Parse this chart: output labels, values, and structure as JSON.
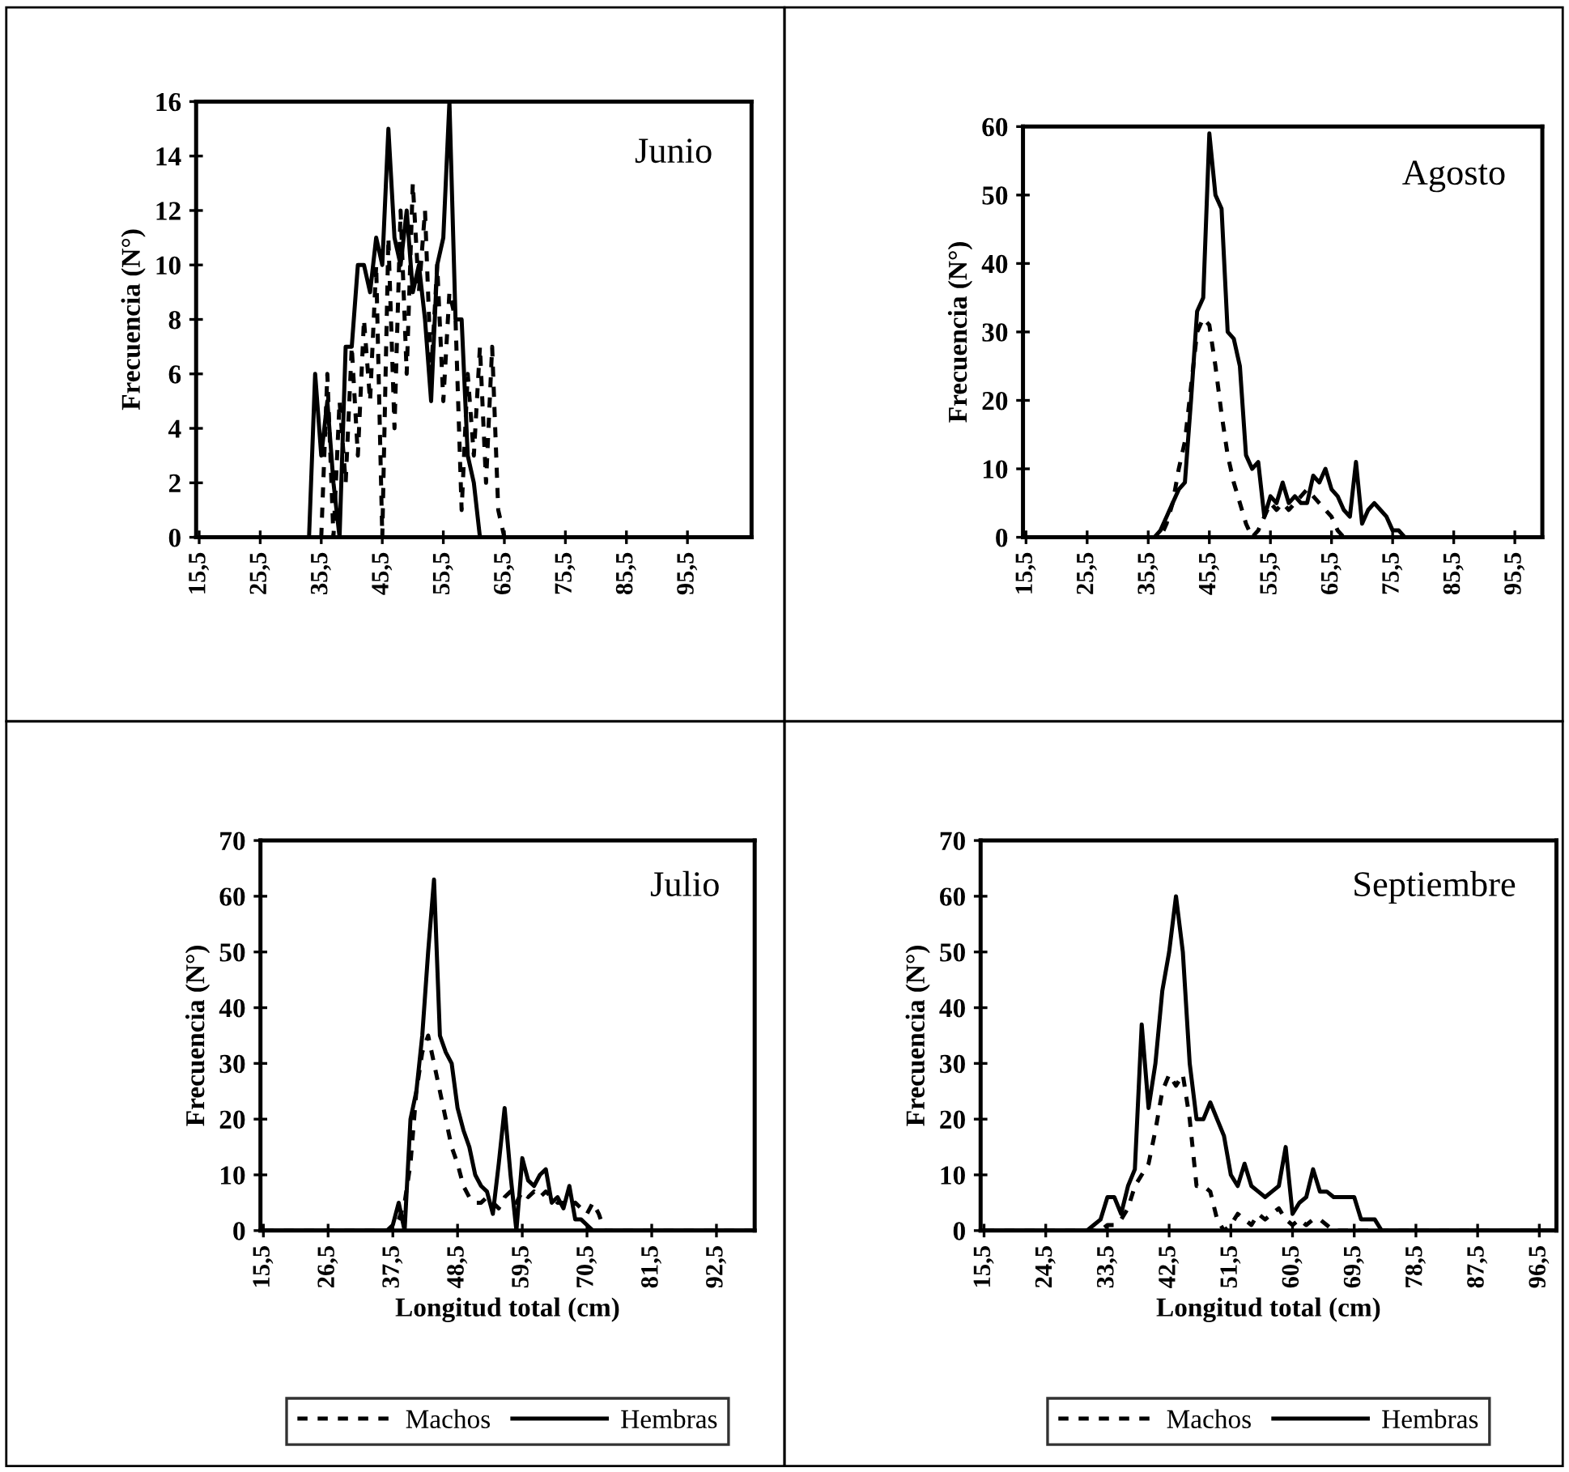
{
  "chart_data": [
    {
      "type": "line",
      "title": "Junio",
      "ylabel": "Frecuencia (N°)",
      "xlim": [
        15,
        106
      ],
      "ylim": [
        0,
        16
      ],
      "xticks": [
        {
          "value": 15.5,
          "label": "15,5"
        },
        {
          "value": 25.5,
          "label": "25,5"
        },
        {
          "value": 35.5,
          "label": "35,5"
        },
        {
          "value": 45.5,
          "label": "45,5"
        },
        {
          "value": 55.5,
          "label": "55,5"
        },
        {
          "value": 65.5,
          "label": "65,5"
        },
        {
          "value": 75.5,
          "label": "75,5"
        },
        {
          "value": 85.5,
          "label": "85,5"
        },
        {
          "value": 95.5,
          "label": "95,5"
        }
      ],
      "yticks": [
        0,
        2,
        4,
        6,
        8,
        10,
        12,
        14,
        16
      ],
      "grid": false,
      "legend": false,
      "series": [
        {
          "color": "#000000",
          "line_style": "dashed",
          "x": [
            15.5,
            35.5,
            36.5,
            37.5,
            38.5,
            39.5,
            40.5,
            41.5,
            42.5,
            43.5,
            44.5,
            45.5,
            46.5,
            47.5,
            48.5,
            49.5,
            50.5,
            51.5,
            52.5,
            53.5,
            54.5,
            55.5,
            56.5,
            57.5,
            58.5,
            59.5,
            60.5,
            61.5,
            62.5,
            63.5,
            64.5,
            65.5,
            105.5
          ],
          "values": [
            0,
            0,
            6,
            0,
            5,
            2,
            7,
            3,
            8,
            5,
            10,
            0,
            11,
            4,
            12,
            6,
            13,
            9,
            12,
            6,
            10,
            5,
            9,
            8,
            1,
            6,
            3,
            7,
            2,
            7,
            1,
            0,
            0
          ]
        },
        {
          "color": "#000000",
          "line_style": "solid",
          "x": [
            15.5,
            33.5,
            34.5,
            35.5,
            36.5,
            37.5,
            38.5,
            39.5,
            40.5,
            41.5,
            42.5,
            43.5,
            44.5,
            45.5,
            46.5,
            47.5,
            48.5,
            49.5,
            50.5,
            51.5,
            52.5,
            53.5,
            54.5,
            55.5,
            56.5,
            57.5,
            58.5,
            59.5,
            60.5,
            61.5,
            105.5
          ],
          "values": [
            0,
            0,
            6,
            3,
            5,
            2,
            0,
            7,
            7,
            10,
            10,
            9,
            11,
            10,
            15,
            11,
            10,
            12,
            9,
            10,
            8,
            5,
            10,
            11,
            16,
            8,
            8,
            3,
            2,
            0,
            0
          ]
        }
      ]
    },
    {
      "type": "line",
      "title": "Agosto",
      "ylabel": "Frecuencia (N°)",
      "xlim": [
        15,
        100
      ],
      "ylim": [
        0,
        60
      ],
      "xticks": [
        {
          "value": 15.5,
          "label": "15,5"
        },
        {
          "value": 25.5,
          "label": "25,5"
        },
        {
          "value": 35.5,
          "label": "35,5"
        },
        {
          "value": 45.5,
          "label": "45,5"
        },
        {
          "value": 55.5,
          "label": "55,5"
        },
        {
          "value": 65.5,
          "label": "65,5"
        },
        {
          "value": 75.5,
          "label": "75,5"
        },
        {
          "value": 85.5,
          "label": "85,5"
        },
        {
          "value": 95.5,
          "label": "95,5"
        }
      ],
      "yticks": [
        0,
        10,
        20,
        30,
        40,
        50,
        60
      ],
      "grid": false,
      "legend": false,
      "series": [
        {
          "color": "#000000",
          "line_style": "dashed",
          "x": [
            15.5,
            37.5,
            38.5,
            39.5,
            40.5,
            41.5,
            42.5,
            43.5,
            44.5,
            45.5,
            46.5,
            47.5,
            48.5,
            49.5,
            50.5,
            51.5,
            52.5,
            53.5,
            54.5,
            55.5,
            56.5,
            57.5,
            58.5,
            59.5,
            60.5,
            61.5,
            62.5,
            63.5,
            64.5,
            65.5,
            66.5,
            67.5,
            99.5
          ],
          "values": [
            0,
            0,
            2,
            5,
            10,
            14,
            22,
            30,
            32,
            31,
            25,
            18,
            12,
            8,
            5,
            2,
            0,
            1,
            3,
            5,
            4,
            5,
            4,
            5,
            6,
            7,
            6,
            5,
            4,
            3,
            1,
            0,
            0
          ]
        },
        {
          "color": "#000000",
          "line_style": "solid",
          "x": [
            15.5,
            35.5,
            36.5,
            37.5,
            38.5,
            39.5,
            40.5,
            41.5,
            42.5,
            43.5,
            44.5,
            45.5,
            46.5,
            47.5,
            48.5,
            49.5,
            50.5,
            51.5,
            52.5,
            53.5,
            54.5,
            55.5,
            56.5,
            57.5,
            58.5,
            59.5,
            60.5,
            61.5,
            62.5,
            63.5,
            64.5,
            65.5,
            66.5,
            67.5,
            68.5,
            69.5,
            70.5,
            71.5,
            72.5,
            73.5,
            74.5,
            75.5,
            76.5,
            77.5,
            99.5
          ],
          "values": [
            0,
            0,
            0,
            1,
            3,
            5,
            7,
            8,
            20,
            33,
            35,
            59,
            50,
            48,
            30,
            29,
            25,
            12,
            10,
            11,
            3,
            6,
            5,
            8,
            5,
            6,
            5,
            5,
            9,
            8,
            10,
            7,
            6,
            4,
            3,
            11,
            2,
            4,
            5,
            4,
            3,
            1,
            1,
            0,
            0
          ]
        }
      ]
    },
    {
      "type": "line",
      "title": "Julio",
      "xlabel": "Longitud total (cm)",
      "ylabel": "Frecuencia (N°)",
      "xlim": [
        15,
        99
      ],
      "ylim": [
        0,
        70
      ],
      "xticks": [
        {
          "value": 15.5,
          "label": "15,5"
        },
        {
          "value": 26.5,
          "label": "26,5"
        },
        {
          "value": 37.5,
          "label": "37,5"
        },
        {
          "value": 48.5,
          "label": "48,5"
        },
        {
          "value": 59.5,
          "label": "59,5"
        },
        {
          "value": 70.5,
          "label": "70,5"
        },
        {
          "value": 81.5,
          "label": "81,5"
        },
        {
          "value": 92.5,
          "label": "92,5"
        }
      ],
      "yticks": [
        0,
        10,
        20,
        30,
        40,
        50,
        60,
        70
      ],
      "grid": false,
      "legend": "bottom",
      "series": [
        {
          "name": "Machos",
          "color": "#000000",
          "line_style": "dashed",
          "x": [
            15.5,
            37.5,
            38.5,
            39.5,
            40.5,
            41.5,
            42.5,
            43.5,
            44.5,
            45.5,
            46.5,
            47.5,
            48.5,
            49.5,
            50.5,
            51.5,
            52.5,
            53.5,
            54.5,
            55.5,
            56.5,
            57.5,
            58.5,
            59.5,
            60.5,
            61.5,
            62.5,
            63.5,
            64.5,
            65.5,
            66.5,
            67.5,
            68.5,
            69.5,
            70.5,
            71.5,
            72.5,
            73.5,
            98.5
          ],
          "values": [
            0,
            0,
            2,
            5,
            12,
            25,
            32,
            35,
            30,
            25,
            20,
            15,
            12,
            8,
            6,
            5,
            5,
            6,
            5,
            4,
            6,
            7,
            5,
            7,
            6,
            7,
            6,
            7,
            6,
            5,
            5,
            4,
            5,
            4,
            3,
            5,
            3,
            0,
            0
          ]
        },
        {
          "name": "Hembras",
          "color": "#000000",
          "line_style": "solid",
          "x": [
            15.5,
            36.5,
            37.5,
            38.5,
            39.5,
            40.5,
            41.5,
            42.5,
            43.5,
            44.5,
            45.5,
            46.5,
            47.5,
            48.5,
            49.5,
            50.5,
            51.5,
            52.5,
            53.5,
            54.5,
            55.5,
            56.5,
            57.5,
            58.5,
            59.5,
            60.5,
            61.5,
            62.5,
            63.5,
            64.5,
            65.5,
            66.5,
            67.5,
            68.5,
            69.5,
            70.5,
            71.5,
            98.5
          ],
          "values": [
            0,
            0,
            1,
            5,
            0,
            20,
            25,
            35,
            50,
            63,
            35,
            32,
            30,
            22,
            18,
            15,
            10,
            8,
            7,
            3,
            12,
            22,
            10,
            0,
            13,
            9,
            8,
            10,
            11,
            5,
            6,
            4,
            8,
            2,
            2,
            1,
            0,
            0
          ]
        }
      ]
    },
    {
      "type": "line",
      "title": "Septiembre",
      "xlabel": "Longitud total (cm)",
      "ylabel": "Frecuencia (N°)",
      "xlim": [
        15,
        99
      ],
      "ylim": [
        0,
        70
      ],
      "xticks": [
        {
          "value": 15.5,
          "label": "15,5"
        },
        {
          "value": 24.5,
          "label": "24,5"
        },
        {
          "value": 33.5,
          "label": "33,5"
        },
        {
          "value": 42.5,
          "label": "42,5"
        },
        {
          "value": 51.5,
          "label": "51,5"
        },
        {
          "value": 60.5,
          "label": "60,5"
        },
        {
          "value": 69.5,
          "label": "69,5"
        },
        {
          "value": 78.5,
          "label": "78,5"
        },
        {
          "value": 87.5,
          "label": "87,5"
        },
        {
          "value": 96.5,
          "label": "96,5"
        }
      ],
      "yticks": [
        0,
        10,
        20,
        30,
        40,
        50,
        60,
        70
      ],
      "grid": false,
      "legend": "bottom",
      "series": [
        {
          "name": "Machos",
          "color": "#000000",
          "line_style": "dashed",
          "x": [
            15.5,
            32.5,
            33.5,
            34.5,
            35.5,
            36.5,
            37.5,
            38.5,
            39.5,
            40.5,
            41.5,
            42.5,
            43.5,
            44.5,
            45.5,
            46.5,
            47.5,
            48.5,
            49.5,
            50.5,
            51.5,
            52.5,
            53.5,
            54.5,
            55.5,
            56.5,
            57.5,
            58.5,
            59.5,
            60.5,
            61.5,
            62.5,
            63.5,
            64.5,
            65.5,
            66.5,
            98.5
          ],
          "values": [
            0,
            0,
            1,
            1,
            2,
            4,
            8,
            10,
            12,
            18,
            25,
            28,
            26,
            28,
            20,
            8,
            8,
            7,
            2,
            0,
            1,
            3,
            2,
            1,
            3,
            2,
            3,
            4,
            2,
            1,
            2,
            1,
            2,
            2,
            1,
            0,
            0
          ]
        },
        {
          "name": "Hembras",
          "color": "#000000",
          "line_style": "solid",
          "x": [
            15.5,
            30.5,
            31.5,
            32.5,
            33.5,
            34.5,
            35.5,
            36.5,
            37.5,
            38.5,
            39.5,
            40.5,
            41.5,
            42.5,
            43.5,
            44.5,
            45.5,
            46.5,
            47.5,
            48.5,
            49.5,
            50.5,
            51.5,
            52.5,
            53.5,
            54.5,
            55.5,
            56.5,
            57.5,
            58.5,
            59.5,
            60.5,
            61.5,
            62.5,
            63.5,
            64.5,
            65.5,
            66.5,
            67.5,
            68.5,
            69.5,
            70.5,
            71.5,
            72.5,
            73.5,
            98.5
          ],
          "values": [
            0,
            0,
            1,
            2,
            6,
            6,
            3,
            8,
            11,
            37,
            22,
            30,
            43,
            50,
            60,
            50,
            30,
            20,
            20,
            23,
            20,
            17,
            10,
            8,
            12,
            8,
            7,
            6,
            7,
            8,
            15,
            3,
            5,
            6,
            11,
            7,
            7,
            6,
            6,
            6,
            6,
            2,
            2,
            2,
            0,
            0
          ]
        }
      ]
    }
  ]
}
